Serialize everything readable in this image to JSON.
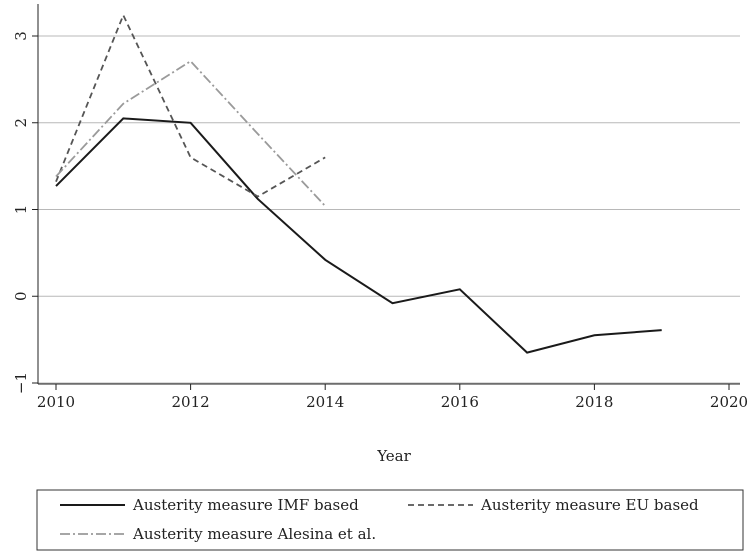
{
  "chart_data": {
    "type": "line",
    "title": "",
    "xlabel": "Year",
    "ylabel": "",
    "xlim": [
      2010,
      2020
    ],
    "ylim": [
      -1,
      3
    ],
    "x_ticks": [
      2010,
      2012,
      2014,
      2016,
      2018,
      2020
    ],
    "y_ticks": [
      -1,
      0,
      1,
      2,
      3
    ],
    "grid": "horizontal",
    "legend_position": "bottom",
    "series": [
      {
        "name": "Austerity measure IMF based",
        "color": "#1a1a1a",
        "dash": "solid",
        "x": [
          2010,
          2011,
          2012,
          2013,
          2014,
          2015,
          2016,
          2017,
          2018,
          2019
        ],
        "y": [
          1.27,
          2.05,
          2.0,
          1.12,
          0.42,
          -0.08,
          0.08,
          -0.65,
          -0.45,
          -0.39
        ]
      },
      {
        "name": "Austerity measure EU based",
        "color": "#555555",
        "dash": "dashed",
        "x": [
          2010,
          2011,
          2012,
          2013,
          2014
        ],
        "y": [
          1.32,
          3.24,
          1.6,
          1.15,
          1.6
        ]
      },
      {
        "name": "Austerity measure Alesina et al.",
        "color": "#9a9a9a",
        "dash": "dashdot",
        "x": [
          2010,
          2011,
          2012,
          2013,
          2014
        ],
        "y": [
          1.38,
          2.22,
          2.71,
          1.87,
          1.04
        ]
      }
    ]
  }
}
